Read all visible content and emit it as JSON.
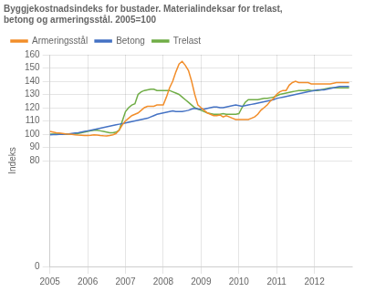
{
  "chart_data": {
    "type": "line",
    "title": [
      "Byggjekostnadsindeks for bustader. Materialindeksar for trelast,",
      "betong og armeringsstål. 2005=100"
    ],
    "ylabel": "Indeks",
    "x": [
      2005.0,
      2005.083,
      2005.167,
      2005.25,
      2005.333,
      2005.417,
      2005.5,
      2005.583,
      2005.667,
      2005.75,
      2005.833,
      2005.917,
      2006.0,
      2006.083,
      2006.167,
      2006.25,
      2006.333,
      2006.417,
      2006.5,
      2006.583,
      2006.667,
      2006.75,
      2006.833,
      2006.917,
      2007.0,
      2007.083,
      2007.167,
      2007.25,
      2007.333,
      2007.417,
      2007.5,
      2007.583,
      2007.667,
      2007.75,
      2007.833,
      2007.917,
      2008.0,
      2008.083,
      2008.167,
      2008.25,
      2008.333,
      2008.417,
      2008.5,
      2008.583,
      2008.667,
      2008.75,
      2008.833,
      2008.917,
      2009.0,
      2009.083,
      2009.167,
      2009.25,
      2009.333,
      2009.417,
      2009.5,
      2009.583,
      2009.667,
      2009.75,
      2009.833,
      2009.917,
      2010.0,
      2010.083,
      2010.167,
      2010.25,
      2010.333,
      2010.417,
      2010.5,
      2010.583,
      2010.667,
      2010.75,
      2010.833,
      2010.917,
      2011.0,
      2011.083,
      2011.167,
      2011.25,
      2011.333,
      2011.417,
      2011.5,
      2011.583,
      2011.667,
      2011.75,
      2011.833,
      2011.917,
      2012.0,
      2012.083,
      2012.167,
      2012.25,
      2012.333,
      2012.417,
      2012.5,
      2012.583,
      2012.667,
      2012.75,
      2012.833,
      2012.917
    ],
    "series": [
      {
        "name": "Armeringsstål",
        "color": "#f28e2b",
        "values": [
          102,
          101.5,
          101,
          100.8,
          100.5,
          100.2,
          100,
          99.8,
          99.5,
          99.3,
          99.2,
          99.0,
          99.0,
          99.2,
          99.5,
          99.3,
          99.0,
          98.8,
          98.7,
          99.0,
          99.5,
          100.5,
          103,
          107,
          110,
          112,
          114,
          115,
          116,
          118,
          120,
          121,
          121,
          121,
          122,
          122,
          122,
          128,
          135,
          140,
          147,
          153,
          155,
          152,
          148,
          140,
          130,
          122,
          120,
          118,
          116,
          115,
          114,
          114,
          114.5,
          113,
          114,
          113,
          112,
          111,
          111,
          111,
          111,
          111,
          112,
          113,
          115,
          118,
          120,
          122,
          125,
          127,
          130,
          132,
          133,
          133,
          137,
          139,
          140,
          139,
          139,
          139,
          139,
          138,
          138,
          138,
          138,
          138,
          138,
          138,
          138.5,
          139,
          139,
          139,
          139,
          139
        ]
      },
      {
        "name": "Betong",
        "color": "#4472c4",
        "values": [
          99.5,
          99.6,
          99.7,
          99.8,
          99.9,
          100,
          100.2,
          100.5,
          100.8,
          101,
          101.5,
          102,
          102.5,
          103,
          103.5,
          104,
          104.5,
          105,
          105.5,
          106,
          106.5,
          107,
          107.5,
          108,
          108.5,
          109,
          109.5,
          110,
          110.5,
          111,
          111.5,
          112,
          113,
          114,
          115,
          115.5,
          116,
          116.5,
          117,
          117.5,
          117,
          117,
          117,
          117.5,
          118,
          119,
          119.5,
          119,
          119,
          119,
          119.5,
          120,
          120.5,
          120.5,
          120,
          120,
          120.5,
          121,
          121.5,
          122,
          121.5,
          121,
          121.5,
          122,
          122.5,
          123,
          123.5,
          124,
          124.5,
          125,
          125.5,
          126,
          127,
          127.5,
          128,
          128.5,
          129,
          129.5,
          130,
          130.5,
          131,
          131.5,
          132,
          132.5,
          133,
          133.5,
          133.5,
          133.5,
          134,
          134.5,
          135,
          135.5,
          136,
          136,
          136,
          136
        ]
      },
      {
        "name": "Trelast",
        "color": "#70ad47",
        "values": [
          100,
          100,
          100,
          100,
          100,
          100,
          100,
          100,
          100.2,
          100.5,
          101,
          101.5,
          102,
          102.5,
          103,
          103,
          102.5,
          102,
          101.5,
          101,
          101,
          101.5,
          103,
          110,
          117,
          120,
          122,
          123,
          130,
          132,
          133,
          133.5,
          134,
          134,
          133,
          133,
          133,
          133,
          133,
          132,
          131,
          130,
          128,
          126,
          124,
          122,
          120,
          119,
          118,
          117,
          116,
          115.5,
          115,
          115,
          115,
          115.5,
          115,
          115,
          115,
          115,
          115.5,
          120,
          124,
          126,
          126,
          126,
          126,
          126.5,
          127,
          127,
          127.5,
          128,
          129,
          130,
          130.5,
          131,
          131.5,
          132,
          132.5,
          133,
          133,
          133,
          133.5,
          133,
          133,
          133,
          133.5,
          134,
          134.5,
          135,
          135,
          135,
          135,
          135,
          135,
          135
        ]
      }
    ],
    "xlim": [
      2005.0,
      2013.0
    ],
    "xticks": [
      2005,
      2006,
      2007,
      2008,
      2009,
      2010,
      2011,
      2012
    ],
    "ylim": [
      0,
      160
    ],
    "yticks": [
      0,
      80,
      90,
      100,
      110,
      120,
      130,
      140,
      150,
      160
    ],
    "grid": true,
    "legend": "upper left"
  }
}
